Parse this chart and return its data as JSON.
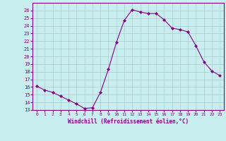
{
  "x": [
    0,
    1,
    2,
    3,
    4,
    5,
    6,
    7,
    8,
    9,
    10,
    11,
    12,
    13,
    14,
    15,
    16,
    17,
    18,
    19,
    20,
    21,
    22,
    23
  ],
  "y": [
    16.1,
    15.6,
    15.3,
    14.8,
    14.3,
    13.8,
    13.2,
    13.3,
    15.3,
    18.3,
    21.8,
    24.7,
    26.1,
    25.8,
    25.6,
    25.6,
    24.8,
    23.7,
    23.5,
    23.2,
    21.4,
    19.3,
    18.1,
    17.5
  ],
  "ylim": [
    13,
    27
  ],
  "yticks": [
    13,
    14,
    15,
    16,
    17,
    18,
    19,
    20,
    21,
    22,
    23,
    24,
    25,
    26
  ],
  "xticks": [
    0,
    1,
    2,
    3,
    4,
    5,
    6,
    7,
    8,
    9,
    10,
    11,
    12,
    13,
    14,
    15,
    16,
    17,
    18,
    19,
    20,
    21,
    22,
    23
  ],
  "xlabel": "Windchill (Refroidissement éolien,°C)",
  "line_color": "#880088",
  "marker_color": "#880088",
  "bg_color": "#c8eef0",
  "grid_color": "#aacccc",
  "title": ""
}
